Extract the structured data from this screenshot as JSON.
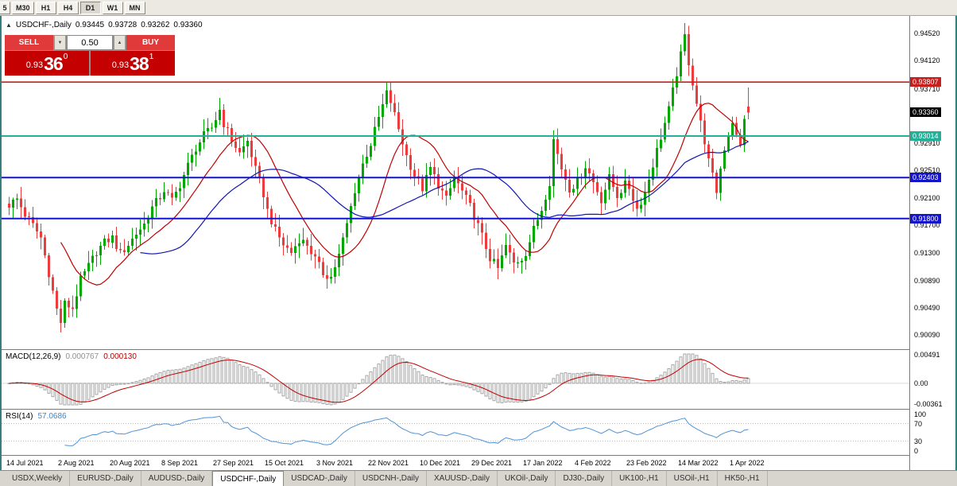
{
  "colors": {
    "frame": "#377F7F",
    "candle_up": "#00A800",
    "candle_down": "#EE3B3B",
    "ma_fast": "#C00000",
    "ma_slow": "#1414B4",
    "macd_hist": "#A6A6A6",
    "macd_signal": "#C00000",
    "rsi_line": "#4F93D8",
    "level_dotted": "#BFBFBF"
  },
  "toolbar": {
    "timeframes": [
      {
        "label": "5",
        "partial": true
      },
      {
        "label": "M30"
      },
      {
        "label": "H1"
      },
      {
        "label": "H4"
      },
      {
        "label": "D1",
        "active": true
      },
      {
        "label": "W1"
      },
      {
        "label": "MN"
      }
    ]
  },
  "chart": {
    "symbol_title": "USDCHF-,Daily",
    "ohlc": {
      "open": "0.93445",
      "high": "0.93728",
      "low": "0.93262",
      "close": "0.93360"
    },
    "one_click": {
      "sell_label": "SELL",
      "buy_label": "BUY",
      "volume": "0.50",
      "sell_price": {
        "base": "0.93",
        "big": "36",
        "sup": "0"
      },
      "buy_price": {
        "base": "0.93",
        "big": "38",
        "sup": "1"
      }
    },
    "axis": {
      "grid_labels": [
        "0.94520",
        "0.94120",
        "0.93710",
        "0.92910",
        "0.92510",
        "0.92100",
        "0.91700",
        "0.91300",
        "0.90890",
        "0.90490",
        "0.90090"
      ],
      "boxed_labels": [
        {
          "text": "0.93807",
          "bg": "#C81E1E"
        },
        {
          "text": "0.93360",
          "bg": "#000000"
        },
        {
          "text": "0.93014",
          "bg": "#22B098"
        },
        {
          "text": "0.92403",
          "bg": "#1414CC"
        },
        {
          "text": "0.91800",
          "bg": "#1414CC"
        }
      ]
    }
  },
  "macd": {
    "label": "MACD(12,26,9)",
    "value_main": "0.000767",
    "value_signal": "0.000130",
    "axis": [
      "0.00491",
      "0.00",
      "-0.00361"
    ],
    "scale_max": 0.00491,
    "scale_min": -0.00361
  },
  "rsi": {
    "label": "RSI(14)",
    "value": "57.0686",
    "axis": [
      100,
      70,
      30,
      0
    ],
    "levels": [
      70,
      30
    ]
  },
  "tabs": {
    "active_index": 3,
    "items": [
      "USDX,Weekly",
      "EURUSD-,Daily",
      "AUDUSD-,Daily",
      "USDCHF-,Daily",
      "USDCAD-,Daily",
      "USDCNH-,Daily",
      "XAUUSD-,Daily",
      "UKOil-,Daily",
      "DJ30-,Daily",
      "UK100-,H1",
      "USOil-,H1",
      "HK50-,H1"
    ]
  },
  "chart_data": {
    "type": "candlestick",
    "symbol": "USDCHF-",
    "timeframe": "Daily",
    "today_ohlc": {
      "open": 0.93445,
      "high": 0.93728,
      "low": 0.93262,
      "close": 0.9336
    },
    "bid": 0.9336,
    "ask": 0.93381,
    "price_max": 0.9478,
    "price_min": 0.8988,
    "candles_count": 187,
    "last_candle": [
      0.93445,
      0.93728,
      0.93262,
      0.9336
    ],
    "hlines": [
      {
        "price": 0.93807,
        "color": "#C81E1E",
        "width": 1.6
      },
      {
        "price": 0.93014,
        "color": "#22B098",
        "width": 2
      },
      {
        "price": 0.92403,
        "color": "#1414CC",
        "width": 2
      },
      {
        "price": 0.918,
        "color": "#1414CC",
        "width": 2
      }
    ],
    "indicators": {
      "ma_fast_period": 14,
      "ma_slow_period": 34,
      "macd": [
        12,
        26,
        9
      ],
      "rsi_period": 14
    },
    "x_ticks": [
      {
        "day": 0,
        "label": "14 Jul 2021"
      },
      {
        "day": 13,
        "label": "2 Aug 2021"
      },
      {
        "day": 26,
        "label": "20 Aug 2021"
      },
      {
        "day": 39,
        "label": "8 Sep 2021"
      },
      {
        "day": 52,
        "label": "27 Sep 2021"
      },
      {
        "day": 65,
        "label": "15 Oct 2021"
      },
      {
        "day": 78,
        "label": "3 Nov 2021"
      },
      {
        "day": 91,
        "label": "22 Nov 2021"
      },
      {
        "day": 104,
        "label": "10 Dec 2021"
      },
      {
        "day": 117,
        "label": "29 Dec 2021"
      },
      {
        "day": 130,
        "label": "17 Jan 2022"
      },
      {
        "day": 143,
        "label": "4 Feb 2022"
      },
      {
        "day": 156,
        "label": "23 Feb 2022"
      },
      {
        "day": 169,
        "label": "14 Mar 2022"
      },
      {
        "day": 182,
        "label": "1 Apr 2022"
      }
    ],
    "close_keypoints": [
      [
        0,
        0.92
      ],
      [
        2,
        0.9209
      ],
      [
        4,
        0.9186
      ],
      [
        6,
        0.917
      ],
      [
        8,
        0.9152
      ],
      [
        10,
        0.91
      ],
      [
        12,
        0.9046
      ],
      [
        13,
        0.9028
      ],
      [
        14,
        0.9055
      ],
      [
        16,
        0.9048
      ],
      [
        18,
        0.909
      ],
      [
        20,
        0.911
      ],
      [
        22,
        0.9132
      ],
      [
        24,
        0.9145
      ],
      [
        26,
        0.9152
      ],
      [
        28,
        0.9128
      ],
      [
        30,
        0.9142
      ],
      [
        32,
        0.9158
      ],
      [
        34,
        0.9172
      ],
      [
        36,
        0.9196
      ],
      [
        38,
        0.9212
      ],
      [
        39,
        0.9222
      ],
      [
        41,
        0.9206
      ],
      [
        43,
        0.923
      ],
      [
        45,
        0.9258
      ],
      [
        47,
        0.9284
      ],
      [
        49,
        0.9302
      ],
      [
        51,
        0.9314
      ],
      [
        53,
        0.934
      ],
      [
        54,
        0.932
      ],
      [
        56,
        0.9296
      ],
      [
        58,
        0.9276
      ],
      [
        60,
        0.9294
      ],
      [
        62,
        0.9252
      ],
      [
        64,
        0.9216
      ],
      [
        65,
        0.9192
      ],
      [
        67,
        0.9162
      ],
      [
        69,
        0.9142
      ],
      [
        71,
        0.913
      ],
      [
        73,
        0.915
      ],
      [
        75,
        0.9142
      ],
      [
        77,
        0.912
      ],
      [
        79,
        0.91
      ],
      [
        81,
        0.9094
      ],
      [
        83,
        0.9126
      ],
      [
        85,
        0.9172
      ],
      [
        87,
        0.9222
      ],
      [
        89,
        0.926
      ],
      [
        91,
        0.929
      ],
      [
        93,
        0.9328
      ],
      [
        95,
        0.9364
      ],
      [
        96,
        0.9352
      ],
      [
        98,
        0.9312
      ],
      [
        100,
        0.9272
      ],
      [
        102,
        0.9244
      ],
      [
        104,
        0.9224
      ],
      [
        106,
        0.9254
      ],
      [
        108,
        0.923
      ],
      [
        110,
        0.9208
      ],
      [
        112,
        0.924
      ],
      [
        114,
        0.922
      ],
      [
        116,
        0.9198
      ],
      [
        117,
        0.9184
      ],
      [
        119,
        0.9154
      ],
      [
        121,
        0.9122
      ],
      [
        123,
        0.9106
      ],
      [
        125,
        0.914
      ],
      [
        127,
        0.9114
      ],
      [
        129,
        0.9122
      ],
      [
        130,
        0.913
      ],
      [
        132,
        0.9164
      ],
      [
        134,
        0.9194
      ],
      [
        136,
        0.9234
      ],
      [
        137,
        0.9296
      ],
      [
        139,
        0.9254
      ],
      [
        141,
        0.9224
      ],
      [
        143,
        0.9234
      ],
      [
        145,
        0.9258
      ],
      [
        147,
        0.9234
      ],
      [
        149,
        0.9208
      ],
      [
        151,
        0.924
      ],
      [
        153,
        0.9214
      ],
      [
        155,
        0.923
      ],
      [
        156,
        0.9226
      ],
      [
        158,
        0.9194
      ],
      [
        160,
        0.9218
      ],
      [
        162,
        0.926
      ],
      [
        164,
        0.93
      ],
      [
        166,
        0.934
      ],
      [
        168,
        0.9394
      ],
      [
        169,
        0.942
      ],
      [
        170,
        0.9448
      ],
      [
        171,
        0.941
      ],
      [
        172,
        0.938
      ],
      [
        173,
        0.935
      ],
      [
        174,
        0.932
      ],
      [
        175,
        0.9294
      ],
      [
        176,
        0.9264
      ],
      [
        177,
        0.9242
      ],
      [
        178,
        0.922
      ],
      [
        179,
        0.9254
      ],
      [
        180,
        0.9284
      ],
      [
        181,
        0.9304
      ],
      [
        182,
        0.9324
      ],
      [
        183,
        0.93
      ],
      [
        184,
        0.9286
      ],
      [
        185,
        0.933
      ],
      [
        186,
        0.9336
      ]
    ]
  }
}
